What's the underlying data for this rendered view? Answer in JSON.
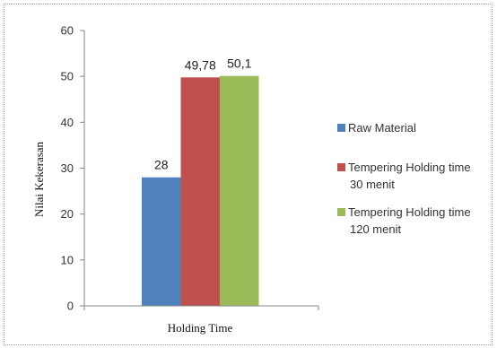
{
  "chart_data": {
    "type": "bar",
    "categories": [
      "Holding Time"
    ],
    "xlabel": "Holding Time",
    "ylabel": "Nilai Kekerasan",
    "ylim": [
      0,
      60
    ],
    "yticks": [
      "0",
      "10",
      "20",
      "30",
      "40",
      "50",
      "60"
    ],
    "grid": false,
    "legend_position": "right",
    "series": [
      {
        "name": "Raw Material",
        "name_lines": [
          "Raw Material"
        ],
        "values": [
          28
        ],
        "label": "28",
        "color": "#4f81bd"
      },
      {
        "name": "Tempering Holding time 30 menit",
        "name_lines": [
          "Tempering Holding time",
          "30 menit"
        ],
        "values": [
          49.78
        ],
        "label": "49,78",
        "color": "#c0504d"
      },
      {
        "name": "Tempering Holding time 120 menit",
        "name_lines": [
          "Tempering Holding time",
          "120 menit"
        ],
        "values": [
          50.1
        ],
        "label": "50,1",
        "color": "#9bbb59"
      }
    ]
  }
}
